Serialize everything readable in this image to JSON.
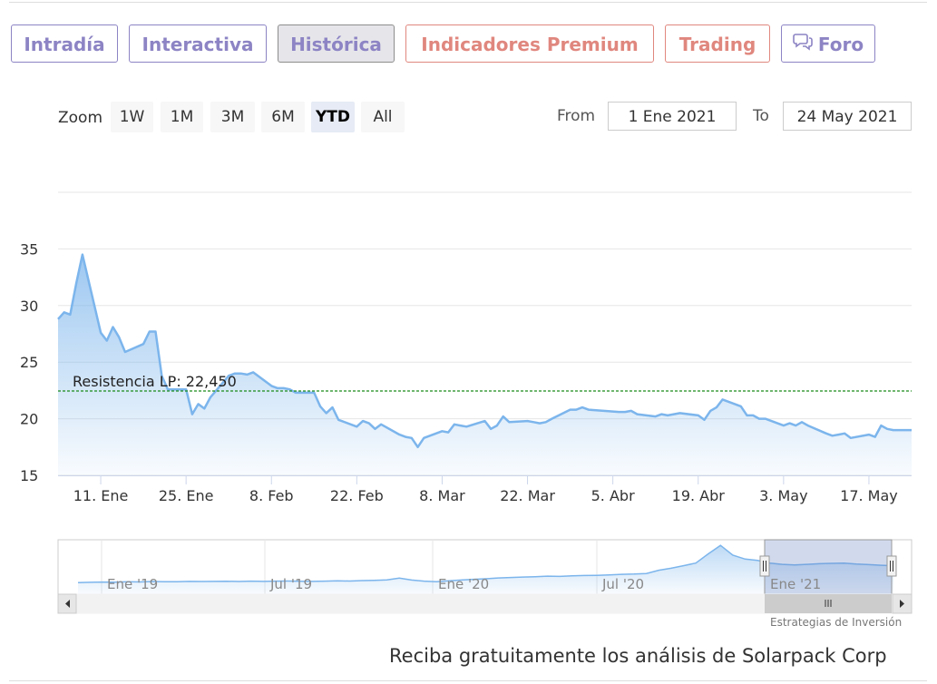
{
  "tabs": [
    {
      "label": "Intradía",
      "style": "normal"
    },
    {
      "label": "Interactiva",
      "style": "normal"
    },
    {
      "label": "Histórica",
      "style": "active"
    },
    {
      "label": "Indicadores Premium",
      "style": "premium"
    },
    {
      "label": "Trading",
      "style": "premium"
    },
    {
      "label": "Foro",
      "style": "normal",
      "icon": "chat-bubbles-icon"
    }
  ],
  "zoom": {
    "label": "Zoom",
    "buttons": [
      "1W",
      "1M",
      "3M",
      "6M",
      "YTD",
      "All"
    ],
    "selected": "YTD"
  },
  "range": {
    "from_label": "From",
    "from_value": "1 Ene 2021",
    "to_label": "To",
    "to_value": "24 May 2021"
  },
  "chart_data": {
    "type": "area",
    "y_ticks": [
      15,
      20,
      25,
      30,
      35
    ],
    "ylim": [
      15,
      40
    ],
    "x_ticks": [
      {
        "label": "11. Ene",
        "date": "2021-01-11"
      },
      {
        "label": "25. Ene",
        "date": "2021-01-25"
      },
      {
        "label": "8. Feb",
        "date": "2021-02-08"
      },
      {
        "label": "22. Feb",
        "date": "2021-02-22"
      },
      {
        "label": "8. Mar",
        "date": "2021-03-08"
      },
      {
        "label": "22. Mar",
        "date": "2021-03-22"
      },
      {
        "label": "5. Abr",
        "date": "2021-04-05"
      },
      {
        "label": "19. Abr",
        "date": "2021-04-19"
      },
      {
        "label": "3. May",
        "date": "2021-05-03"
      },
      {
        "label": "17. May",
        "date": "2021-05-17"
      }
    ],
    "x_range": [
      "2021-01-04",
      "2021-05-24"
    ],
    "series": [
      {
        "color": "#7cb5ec",
        "points": [
          [
            "2021-01-04",
            28.8
          ],
          [
            "2021-01-05",
            29.4
          ],
          [
            "2021-01-06",
            29.2
          ],
          [
            "2021-01-07",
            32.0
          ],
          [
            "2021-01-08",
            34.5
          ],
          [
            "2021-01-11",
            27.6
          ],
          [
            "2021-01-12",
            26.9
          ],
          [
            "2021-01-13",
            28.1
          ],
          [
            "2021-01-14",
            27.2
          ],
          [
            "2021-01-15",
            25.9
          ],
          [
            "2021-01-18",
            26.6
          ],
          [
            "2021-01-19",
            27.7
          ],
          [
            "2021-01-20",
            27.7
          ],
          [
            "2021-01-21",
            23.8
          ],
          [
            "2021-01-22",
            22.6
          ],
          [
            "2021-01-25",
            22.6
          ],
          [
            "2021-01-26",
            20.4
          ],
          [
            "2021-01-27",
            21.3
          ],
          [
            "2021-01-28",
            20.9
          ],
          [
            "2021-01-29",
            21.9
          ],
          [
            "2021-02-01",
            23.8
          ],
          [
            "2021-02-02",
            24.0
          ],
          [
            "2021-02-03",
            24.0
          ],
          [
            "2021-02-04",
            23.9
          ],
          [
            "2021-02-05",
            24.1
          ],
          [
            "2021-02-08",
            22.9
          ],
          [
            "2021-02-09",
            22.7
          ],
          [
            "2021-02-10",
            22.7
          ],
          [
            "2021-02-11",
            22.6
          ],
          [
            "2021-02-12",
            22.3
          ],
          [
            "2021-02-15",
            22.3
          ],
          [
            "2021-02-16",
            21.1
          ],
          [
            "2021-02-17",
            20.5
          ],
          [
            "2021-02-18",
            21.0
          ],
          [
            "2021-02-19",
            19.9
          ],
          [
            "2021-02-22",
            19.3
          ],
          [
            "2021-02-23",
            19.8
          ],
          [
            "2021-02-24",
            19.6
          ],
          [
            "2021-02-25",
            19.1
          ],
          [
            "2021-02-26",
            19.5
          ],
          [
            "2021-03-01",
            18.6
          ],
          [
            "2021-03-02",
            18.4
          ],
          [
            "2021-03-03",
            18.3
          ],
          [
            "2021-03-04",
            17.5
          ],
          [
            "2021-03-05",
            18.3
          ],
          [
            "2021-03-08",
            18.9
          ],
          [
            "2021-03-09",
            18.8
          ],
          [
            "2021-03-10",
            19.5
          ],
          [
            "2021-03-11",
            19.4
          ],
          [
            "2021-03-12",
            19.3
          ],
          [
            "2021-03-15",
            19.8
          ],
          [
            "2021-03-16",
            19.1
          ],
          [
            "2021-03-17",
            19.4
          ],
          [
            "2021-03-18",
            20.2
          ],
          [
            "2021-03-19",
            19.7
          ],
          [
            "2021-03-22",
            19.8
          ],
          [
            "2021-03-23",
            19.7
          ],
          [
            "2021-03-24",
            19.6
          ],
          [
            "2021-03-25",
            19.7
          ],
          [
            "2021-03-26",
            20.0
          ],
          [
            "2021-03-29",
            20.8
          ],
          [
            "2021-03-30",
            20.8
          ],
          [
            "2021-03-31",
            21.0
          ],
          [
            "2021-04-01",
            20.8
          ],
          [
            "2021-04-06",
            20.6
          ],
          [
            "2021-04-07",
            20.6
          ],
          [
            "2021-04-08",
            20.7
          ],
          [
            "2021-04-09",
            20.4
          ],
          [
            "2021-04-12",
            20.2
          ],
          [
            "2021-04-13",
            20.4
          ],
          [
            "2021-04-14",
            20.3
          ],
          [
            "2021-04-15",
            20.4
          ],
          [
            "2021-04-16",
            20.5
          ],
          [
            "2021-04-19",
            20.3
          ],
          [
            "2021-04-20",
            19.9
          ],
          [
            "2021-04-21",
            20.7
          ],
          [
            "2021-04-22",
            21.0
          ],
          [
            "2021-04-23",
            21.7
          ],
          [
            "2021-04-26",
            21.1
          ],
          [
            "2021-04-27",
            20.3
          ],
          [
            "2021-04-28",
            20.3
          ],
          [
            "2021-04-29",
            20.0
          ],
          [
            "2021-04-30",
            20.0
          ],
          [
            "2021-05-03",
            19.4
          ],
          [
            "2021-05-04",
            19.6
          ],
          [
            "2021-05-05",
            19.4
          ],
          [
            "2021-05-06",
            19.7
          ],
          [
            "2021-05-07",
            19.4
          ],
          [
            "2021-05-10",
            18.7
          ],
          [
            "2021-05-11",
            18.5
          ],
          [
            "2021-05-12",
            18.6
          ],
          [
            "2021-05-13",
            18.7
          ],
          [
            "2021-05-14",
            18.3
          ],
          [
            "2021-05-17",
            18.6
          ],
          [
            "2021-05-18",
            18.4
          ],
          [
            "2021-05-19",
            19.4
          ],
          [
            "2021-05-20",
            19.1
          ],
          [
            "2021-05-21",
            19.0
          ],
          [
            "2021-05-24",
            19.0
          ]
        ]
      }
    ],
    "plot_lines": [
      {
        "label": "Resistencia LP: 22,450",
        "value": 22.45,
        "color": "#1a8a1a",
        "style": "dashed"
      }
    ],
    "navigator": {
      "x_ticks": [
        "Ene '19",
        "Jul '19",
        "Ene '20",
        "Jul '20",
        "Ene '21"
      ],
      "series": [
        6,
        6.3,
        6.5,
        6.4,
        6.8,
        6.6,
        6.9,
        6.7,
        6.8,
        7.0,
        6.9,
        7.0,
        7.1,
        6.9,
        7.2,
        7.0,
        7.2,
        7.3,
        7.1,
        7.0,
        7.2,
        7.4,
        7.3,
        7.6,
        7.8,
        8.2,
        9.5,
        8.0,
        7.2,
        6.8,
        7.5,
        8.0,
        8.6,
        9.0,
        9.6,
        10.0,
        10.3,
        10.6,
        11.0,
        10.8,
        11.2,
        11.5,
        11.6,
        12.0,
        12.4,
        12.6,
        13.0,
        15.5,
        17.0,
        19.0,
        21.0,
        28.0,
        34.5,
        27.0,
        24.0,
        23.0,
        21.0,
        20.0,
        19.5,
        20.0,
        20.5,
        20.8,
        21.0,
        20.3,
        19.8,
        19.3,
        19.0
      ]
    },
    "scrollbar": {
      "grip_icon": "grip-lines-icon",
      "left_arrow_icon": "arrow-left-icon",
      "right_arrow_icon": "arrow-right-icon"
    }
  },
  "credits": "Estrategias de Inversión",
  "promo": "Reciba gratuitamente los análisis de Solarpack Corp"
}
